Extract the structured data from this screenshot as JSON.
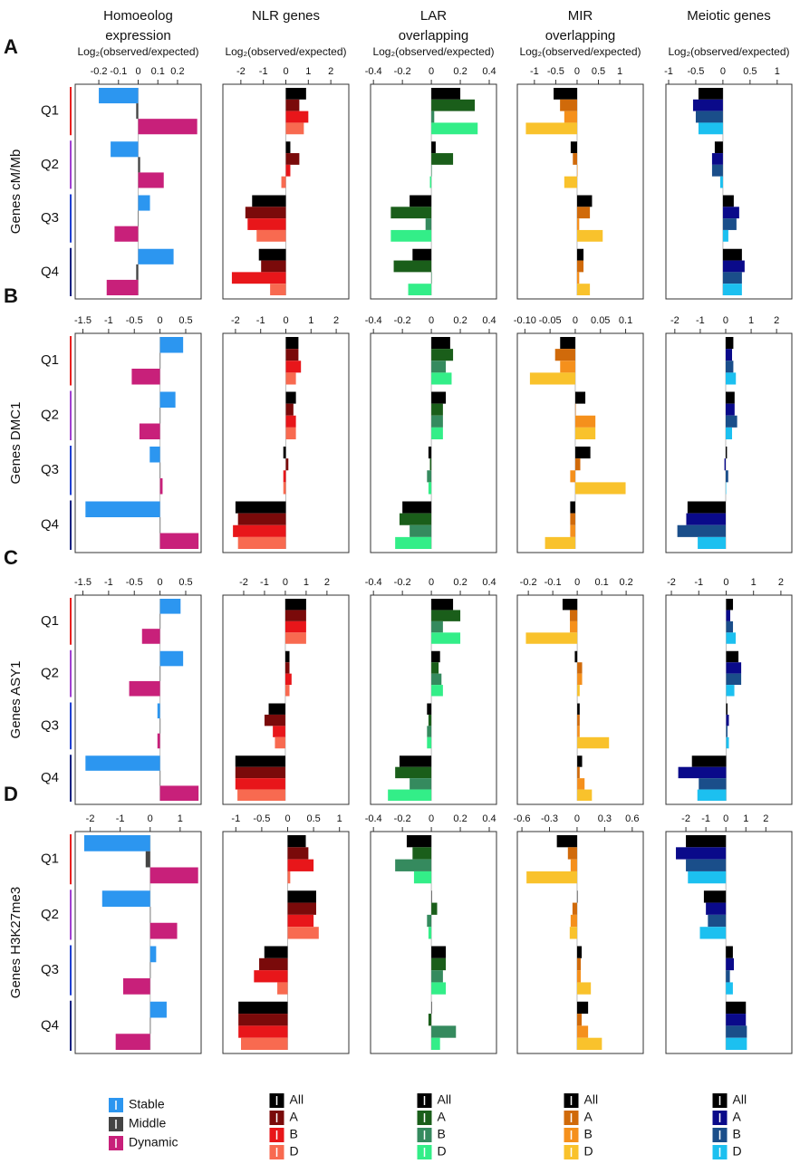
{
  "chart_data": [
    {
      "type": "bar",
      "panel_label": "A",
      "ylabel": "Genes cM/Mb",
      "title": [
        "Homoeolog",
        "expression"
      ],
      "title_color": "#777777",
      "xlabel": "Log₂(observed/expected)",
      "categories": [
        "Q1",
        "Q2",
        "Q3",
        "Q4"
      ],
      "category_colors": [
        "#e82020",
        "#a040d0",
        "#2040d0",
        "#102080"
      ],
      "xlim": [
        -0.32,
        0.32
      ],
      "xticks": [
        -0.2,
        -0.1,
        0,
        0.1,
        0.2
      ],
      "series": [
        {
          "color": "#2c96f0",
          "values": [
            -0.2,
            -0.14,
            0.06,
            0.18
          ]
        },
        {
          "color": "#444444",
          "values": [
            -0.01,
            0.01,
            0,
            -0.01
          ]
        },
        {
          "color": "#c8207a",
          "values": [
            0.3,
            0.13,
            -0.12,
            -0.16
          ]
        }
      ]
    },
    {
      "type": "bar",
      "title": [
        "NLR genes"
      ],
      "title_color": "#c0141a",
      "xlabel": "Log₂(observed/expected)",
      "xlim": [
        -2.8,
        2.8
      ],
      "xticks": [
        -2,
        -1,
        0,
        1,
        2
      ],
      "series": [
        {
          "color": "#000000",
          "values": [
            0.9,
            0.2,
            -1.5,
            -1.2
          ]
        },
        {
          "color": "#7a0a0a",
          "values": [
            0.6,
            0.6,
            -1.8,
            -1.1
          ]
        },
        {
          "color": "#e8161a",
          "values": [
            1.0,
            0.2,
            -1.7,
            -2.4
          ]
        },
        {
          "color": "#f86a50",
          "values": [
            0.8,
            -0.2,
            -1.3,
            -0.7
          ]
        }
      ]
    },
    {
      "type": "bar",
      "title": [
        "LAR",
        "overlapping"
      ],
      "title_color": "#1a6e1a",
      "xlabel": "Log₂(observed/expected)",
      "xlim": [
        -0.42,
        0.45
      ],
      "xticks": [
        -0.4,
        -0.2,
        0,
        0.2,
        0.4
      ],
      "series": [
        {
          "color": "#000000",
          "values": [
            0.2,
            0.03,
            -0.15,
            -0.13
          ]
        },
        {
          "color": "#1a5e1a",
          "values": [
            0.3,
            0.15,
            -0.28,
            -0.26
          ]
        },
        {
          "color": "#358a5e",
          "values": [
            0.02,
            0,
            -0.04,
            0
          ]
        },
        {
          "color": "#33ee88",
          "values": [
            0.32,
            -0.01,
            -0.28,
            -0.16
          ]
        }
      ]
    },
    {
      "type": "bar",
      "title": [
        "MIR",
        "overlapping"
      ],
      "title_color": "#d07010",
      "xlabel": "Log₂(observed/expected)",
      "xlim": [
        -1.4,
        1.55
      ],
      "xticks": [
        -1,
        -0.5,
        0,
        0.5,
        1
      ],
      "series": [
        {
          "color": "#000000",
          "values": [
            -0.55,
            -0.15,
            0.35,
            0.15
          ]
        },
        {
          "color": "#d06a0a",
          "values": [
            -0.4,
            -0.1,
            0.3,
            0.15
          ]
        },
        {
          "color": "#f5901c",
          "values": [
            -0.3,
            0,
            0.05,
            0.05
          ]
        },
        {
          "color": "#f9c22c",
          "values": [
            -1.2,
            -0.3,
            0.6,
            0.3
          ]
        }
      ]
    },
    {
      "type": "bar",
      "title": [
        "Meiotic genes"
      ],
      "title_color": "#1a1a8a",
      "xlabel": "Log₂(observed/expected)",
      "xlim": [
        -1.05,
        1.27
      ],
      "xticks": [
        -1,
        -0.5,
        0,
        0.5,
        1
      ],
      "series": [
        {
          "color": "#000000",
          "values": [
            -0.45,
            -0.15,
            0.2,
            0.35
          ]
        },
        {
          "color": "#0a0a8a",
          "values": [
            -0.55,
            -0.2,
            0.3,
            0.4
          ]
        },
        {
          "color": "#1a4e8a",
          "values": [
            -0.5,
            -0.2,
            0.25,
            0.35
          ]
        },
        {
          "color": "#1cc0f0",
          "values": [
            -0.45,
            -0.05,
            0.1,
            0.35
          ]
        }
      ]
    },
    {
      "type": "bar",
      "panel_label": "B",
      "ylabel": "Genes DMC1",
      "categories": [
        "Q1",
        "Q2",
        "Q3",
        "Q4"
      ],
      "category_colors": [
        "#e82020",
        "#a040d0",
        "#2040d0",
        "#102080"
      ],
      "xlim": [
        -1.65,
        0.8
      ],
      "xticks": [
        -1.5,
        -1,
        -0.5,
        0,
        0.5
      ],
      "series": [
        {
          "color": "#2c96f0",
          "values": [
            0.45,
            0.3,
            -0.2,
            -1.45
          ]
        },
        {
          "color": "#444444",
          "values": [
            0,
            0,
            0,
            0
          ]
        },
        {
          "color": "#c8207a",
          "values": [
            -0.55,
            -0.4,
            0.05,
            0.75
          ]
        }
      ]
    },
    {
      "type": "bar",
      "xlim": [
        -2.5,
        2.5
      ],
      "xticks": [
        -2,
        -1,
        0,
        1,
        2
      ],
      "series": [
        {
          "color": "#000000",
          "values": [
            0.5,
            0.4,
            -0.1,
            -2.0
          ]
        },
        {
          "color": "#7a0a0a",
          "values": [
            0.5,
            0.3,
            0.1,
            -1.9
          ]
        },
        {
          "color": "#e8161a",
          "values": [
            0.6,
            0.4,
            -0.1,
            -2.1
          ]
        },
        {
          "color": "#f86a50",
          "values": [
            0.4,
            0.4,
            -0.1,
            -1.9
          ]
        }
      ]
    },
    {
      "type": "bar",
      "xlim": [
        -0.42,
        0.45
      ],
      "xticks": [
        -0.4,
        -0.2,
        0,
        0.2,
        0.4
      ],
      "series": [
        {
          "color": "#000000",
          "values": [
            0.13,
            0.1,
            -0.02,
            -0.2
          ]
        },
        {
          "color": "#1a5e1a",
          "values": [
            0.15,
            0.08,
            -0.01,
            -0.22
          ]
        },
        {
          "color": "#358a5e",
          "values": [
            0.1,
            0.08,
            -0.03,
            -0.15
          ]
        },
        {
          "color": "#33ee88",
          "values": [
            0.14,
            0.08,
            -0.02,
            -0.25
          ]
        }
      ]
    },
    {
      "type": "bar",
      "xlim": [
        -0.115,
        0.135
      ],
      "xticks": [
        {
          "value": -0.1,
          "label": "-0.10"
        },
        -0.05,
        0,
        0.05,
        0.1
      ],
      "series": [
        {
          "color": "#000000",
          "values": [
            -0.03,
            0.02,
            0.03,
            -0.01
          ]
        },
        {
          "color": "#d06a0a",
          "values": [
            -0.04,
            0,
            0.01,
            -0.01
          ]
        },
        {
          "color": "#f5901c",
          "values": [
            -0.03,
            0.04,
            -0.01,
            -0.01
          ]
        },
        {
          "color": "#f9c22c",
          "values": [
            -0.09,
            0.04,
            0.1,
            -0.06
          ]
        }
      ]
    },
    {
      "type": "bar",
      "xlim": [
        -2.35,
        2.6
      ],
      "xticks": [
        -2,
        -1,
        0,
        1,
        2
      ],
      "series": [
        {
          "color": "#000000",
          "values": [
            0.3,
            0.35,
            0.05,
            -1.5
          ]
        },
        {
          "color": "#0a0a8a",
          "values": [
            0.25,
            0.35,
            -0.05,
            -1.55
          ]
        },
        {
          "color": "#1a4e8a",
          "values": [
            0.3,
            0.45,
            0.1,
            -1.9
          ]
        },
        {
          "color": "#1cc0f0",
          "values": [
            0.4,
            0.25,
            0,
            -1.1
          ]
        }
      ]
    },
    {
      "type": "bar",
      "panel_label": "C",
      "ylabel": "Genes ASY1",
      "categories": [
        "Q1",
        "Q2",
        "Q3",
        "Q4"
      ],
      "category_colors": [
        "#e82020",
        "#a040d0",
        "#2040d0",
        "#102080"
      ],
      "xlim": [
        -1.65,
        0.8
      ],
      "xticks": [
        -1.5,
        -1,
        -0.5,
        0,
        0.5
      ],
      "series": [
        {
          "color": "#2c96f0",
          "values": [
            0.4,
            0.45,
            -0.05,
            -1.45
          ]
        },
        {
          "color": "#444444",
          "values": [
            0,
            0,
            0,
            0
          ]
        },
        {
          "color": "#c8207a",
          "values": [
            -0.35,
            -0.6,
            -0.05,
            0.75
          ]
        }
      ]
    },
    {
      "type": "bar",
      "xlim": [
        -3.0,
        3.05
      ],
      "xticks": [
        -2,
        -1,
        0,
        1,
        2
      ],
      "series": [
        {
          "color": "#000000",
          "values": [
            1.0,
            0.2,
            -0.8,
            -2.4
          ]
        },
        {
          "color": "#7a0a0a",
          "values": [
            1.0,
            0.2,
            -1.0,
            -2.4
          ]
        },
        {
          "color": "#e8161a",
          "values": [
            1.0,
            0.3,
            -0.6,
            -2.4
          ]
        },
        {
          "color": "#f86a50",
          "values": [
            1.0,
            0.2,
            -0.5,
            -2.3
          ]
        }
      ]
    },
    {
      "type": "bar",
      "xlim": [
        -0.42,
        0.45
      ],
      "xticks": [
        -0.4,
        -0.2,
        0,
        0.2,
        0.4
      ],
      "series": [
        {
          "color": "#000000",
          "values": [
            0.15,
            0.06,
            -0.03,
            -0.22
          ]
        },
        {
          "color": "#1a5e1a",
          "values": [
            0.2,
            0.05,
            -0.02,
            -0.25
          ]
        },
        {
          "color": "#358a5e",
          "values": [
            0.08,
            0.07,
            -0.03,
            -0.15
          ]
        },
        {
          "color": "#33ee88",
          "values": [
            0.2,
            0.08,
            -0.03,
            -0.3
          ]
        }
      ]
    },
    {
      "type": "bar",
      "xlim": [
        -0.245,
        0.27
      ],
      "xticks": [
        -0.2,
        -0.1,
        0,
        0.1,
        0.2
      ],
      "series": [
        {
          "color": "#000000",
          "values": [
            -0.06,
            -0.01,
            0.01,
            0.02
          ]
        },
        {
          "color": "#d06a0a",
          "values": [
            -0.03,
            0.02,
            0.01,
            0.01
          ]
        },
        {
          "color": "#f5901c",
          "values": [
            -0.03,
            0.02,
            0.01,
            0.03
          ]
        },
        {
          "color": "#f9c22c",
          "values": [
            -0.21,
            0.01,
            0.13,
            0.06
          ]
        }
      ]
    },
    {
      "type": "bar",
      "xlim": [
        -2.2,
        2.4
      ],
      "xticks": [
        -2,
        -1,
        0,
        1,
        2
      ],
      "series": [
        {
          "color": "#000000",
          "values": [
            0.25,
            0.45,
            0.05,
            -1.25
          ]
        },
        {
          "color": "#0a0a8a",
          "values": [
            0.15,
            0.55,
            0.1,
            -1.75
          ]
        },
        {
          "color": "#1a4e8a",
          "values": [
            0.25,
            0.55,
            0.05,
            -1.0
          ]
        },
        {
          "color": "#1cc0f0",
          "values": [
            0.35,
            0.3,
            0.1,
            -1.05
          ]
        }
      ]
    },
    {
      "type": "bar",
      "panel_label": "D",
      "ylabel": "Genes H3K27me3",
      "categories": [
        "Q1",
        "Q2",
        "Q3",
        "Q4"
      ],
      "category_colors": [
        "#e82020",
        "#a040d0",
        "#2040d0",
        "#102080"
      ],
      "xlim": [
        -2.5,
        1.7
      ],
      "xticks": [
        -2,
        -1,
        0,
        1
      ],
      "series": [
        {
          "name": "Stable",
          "color": "#2c96f0",
          "values": [
            -2.2,
            -1.6,
            0.2,
            0.55
          ]
        },
        {
          "name": "Middle",
          "color": "#444444",
          "values": [
            -0.15,
            0,
            0,
            0
          ]
        },
        {
          "name": "Dynamic",
          "color": "#c8207a",
          "values": [
            1.6,
            0.9,
            -0.9,
            -1.15
          ]
        }
      ]
    },
    {
      "type": "bar",
      "xlim": [
        -1.25,
        1.18
      ],
      "xticks": [
        -1,
        -0.5,
        0,
        0.5,
        1
      ],
      "series": [
        {
          "name": "All",
          "color": "#000000",
          "values": [
            0.35,
            0.55,
            -0.45,
            -0.95
          ]
        },
        {
          "name": "A",
          "color": "#7a0a0a",
          "values": [
            0.4,
            0.55,
            -0.55,
            -0.95
          ]
        },
        {
          "name": "B",
          "color": "#e8161a",
          "values": [
            0.5,
            0.5,
            -0.65,
            -0.95
          ]
        },
        {
          "name": "D",
          "color": "#f86a50",
          "values": [
            0.05,
            0.6,
            -0.2,
            -0.9
          ]
        }
      ]
    },
    {
      "type": "bar",
      "xlim": [
        -0.42,
        0.45
      ],
      "xticks": [
        -0.4,
        -0.2,
        0,
        0.2,
        0.4
      ],
      "series": [
        {
          "name": "All",
          "color": "#000000",
          "values": [
            -0.17,
            0,
            0.1,
            0
          ]
        },
        {
          "name": "A",
          "color": "#1a5e1a",
          "values": [
            -0.13,
            0.04,
            0.1,
            -0.02
          ]
        },
        {
          "name": "B",
          "color": "#358a5e",
          "values": [
            -0.25,
            -0.03,
            0.08,
            0.17
          ]
        },
        {
          "name": "D",
          "color": "#33ee88",
          "values": [
            -0.12,
            -0.02,
            0.1,
            0.06
          ]
        }
      ]
    },
    {
      "type": "bar",
      "xlim": [
        -0.65,
        0.72
      ],
      "xticks": [
        -0.6,
        -0.3,
        0,
        0.3,
        0.6
      ],
      "series": [
        {
          "name": "All",
          "color": "#000000",
          "values": [
            -0.22,
            0,
            0.05,
            0.12
          ]
        },
        {
          "name": "A",
          "color": "#d06a0a",
          "values": [
            -0.1,
            -0.05,
            0.04,
            0.05
          ]
        },
        {
          "name": "B",
          "color": "#f5901c",
          "values": [
            -0.07,
            -0.07,
            0.04,
            0.12
          ]
        },
        {
          "name": "D",
          "color": "#f9c22c",
          "values": [
            -0.55,
            -0.08,
            0.15,
            0.27
          ]
        }
      ]
    },
    {
      "type": "bar",
      "xlim": [
        -3.0,
        3.3
      ],
      "xticks": [
        -2,
        -1,
        0,
        1,
        2
      ],
      "series": [
        {
          "name": "All",
          "color": "#000000",
          "values": [
            -2.0,
            -1.1,
            0.35,
            1.0
          ]
        },
        {
          "name": "A",
          "color": "#0a0a8a",
          "values": [
            -2.5,
            -1.0,
            0.4,
            1.0
          ]
        },
        {
          "name": "B",
          "color": "#1a4e8a",
          "values": [
            -2.0,
            -0.9,
            0.2,
            1.05
          ]
        },
        {
          "name": "D",
          "color": "#1cc0f0",
          "values": [
            -1.9,
            -1.3,
            0.35,
            1.05
          ]
        }
      ]
    }
  ]
}
